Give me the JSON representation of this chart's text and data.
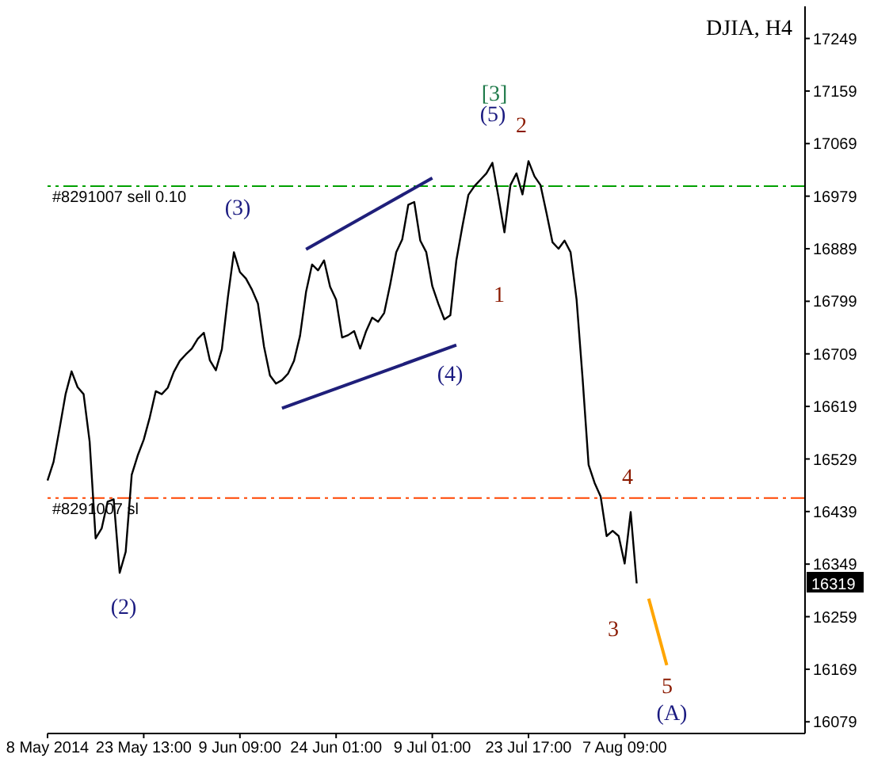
{
  "chart_data": {
    "type": "line",
    "title": "DJIA, H4",
    "categories": [
      "8 May 2014",
      null,
      null,
      null,
      null,
      null,
      null,
      null,
      null,
      null,
      null,
      null,
      null,
      null,
      null,
      null,
      "23 May 13:00",
      null,
      null,
      null,
      null,
      null,
      null,
      null,
      null,
      null,
      null,
      null,
      null,
      null,
      null,
      null,
      "9 Jun 09:00",
      null,
      null,
      null,
      null,
      null,
      null,
      null,
      null,
      null,
      null,
      null,
      null,
      null,
      null,
      null,
      "24 Jun 01:00",
      null,
      null,
      null,
      null,
      null,
      null,
      null,
      null,
      null,
      null,
      null,
      null,
      null,
      null,
      null,
      "9 Jul 01:00",
      null,
      null,
      null,
      null,
      null,
      null,
      null,
      null,
      null,
      null,
      null,
      null,
      null,
      null,
      null,
      "23 Jul 17:00",
      null,
      null,
      null,
      null,
      null,
      null,
      null,
      null,
      null,
      null,
      null,
      null,
      null,
      null,
      null,
      "7 Aug 09:00",
      null,
      null,
      null,
      null,
      null,
      null,
      null,
      null,
      null,
      null,
      null,
      null,
      null,
      null,
      null,
      null,
      null,
      null,
      null,
      null,
      null,
      null,
      null,
      null,
      null,
      null,
      null,
      null,
      null,
      null
    ],
    "ylim": [
      16059,
      17304
    ],
    "yticks": [
      16079,
      16169,
      16259,
      16349,
      16439,
      16529,
      16619,
      16709,
      16799,
      16889,
      16979,
      17069,
      17159,
      17249
    ],
    "marker": "none",
    "line_style": "solid",
    "series": [
      {
        "color": "#000000",
        "values": [
          16492,
          16524,
          16581,
          16640,
          16679,
          16652,
          16640,
          16559,
          16393,
          16410,
          16456,
          16460,
          16334,
          16370,
          16502,
          16535,
          16562,
          16600,
          16645,
          16640,
          16651,
          16678,
          16697,
          16708,
          16718,
          16735,
          16745,
          16698,
          16681,
          16717,
          16806,
          16883,
          16849,
          16838,
          16819,
          16795,
          16722,
          16672,
          16658,
          16664,
          16675,
          16697,
          16740,
          16815,
          16862,
          16852,
          16869,
          16824,
          16802,
          16737,
          16741,
          16748,
          16718,
          16748,
          16771,
          16764,
          16779,
          16828,
          16883,
          16905,
          16964,
          16969,
          16903,
          16883,
          16825,
          16795,
          16768,
          16775,
          16869,
          16927,
          16981,
          16996,
          17007,
          17018,
          17036,
          16978,
          16917,
          16998,
          17018,
          16982,
          17039,
          17013,
          16998,
          16950,
          16900,
          16889,
          16903,
          16883,
          16802,
          16667,
          16519,
          16488,
          16465,
          16397,
          16406,
          16397,
          16350,
          16438,
          16316,
          null,
          null,
          null,
          null,
          null,
          null,
          null,
          null,
          null,
          null,
          null,
          null,
          null,
          null,
          null,
          null,
          null,
          null,
          null,
          null,
          null,
          null,
          null,
          null,
          null,
          null,
          null,
          null
        ]
      },
      {
        "color": "#1f1f7a",
        "values": [
          null,
          null,
          null,
          null,
          null,
          null,
          null,
          null,
          null,
          null,
          null,
          null,
          null,
          null,
          null,
          null,
          null,
          null,
          null,
          null,
          null,
          null,
          null,
          null,
          null,
          null,
          null,
          null,
          null,
          null,
          null,
          null,
          null,
          null,
          null,
          null,
          null,
          null,
          null,
          null,
          null,
          null,
          null,
          16888,
          null,
          null,
          null,
          null,
          null,
          null,
          null,
          null,
          null,
          null,
          null,
          null,
          null,
          null,
          null,
          null,
          null,
          null,
          null,
          null,
          17010,
          null,
          null,
          null,
          null,
          null,
          null,
          null,
          null,
          null,
          null,
          null,
          null,
          null,
          null,
          null,
          null,
          null,
          null,
          null,
          null,
          null,
          null,
          null,
          null,
          null,
          null,
          null,
          null,
          null,
          null,
          null,
          null,
          null,
          null,
          null,
          null,
          null,
          null,
          null,
          null,
          null,
          null,
          null,
          null,
          null,
          null,
          null,
          null,
          null,
          null,
          null,
          null,
          null,
          null,
          null,
          null,
          null,
          null,
          null,
          null,
          null,
          null
        ]
      },
      {
        "color": "#1f1f7a",
        "values": [
          null,
          null,
          null,
          null,
          null,
          null,
          null,
          null,
          null,
          null,
          null,
          null,
          null,
          null,
          null,
          null,
          null,
          null,
          null,
          null,
          null,
          null,
          null,
          null,
          null,
          null,
          null,
          null,
          null,
          null,
          null,
          null,
          null,
          null,
          null,
          null,
          null,
          null,
          null,
          16616,
          null,
          null,
          null,
          null,
          null,
          null,
          null,
          null,
          null,
          null,
          null,
          null,
          null,
          null,
          null,
          null,
          null,
          null,
          null,
          null,
          null,
          null,
          null,
          null,
          null,
          null,
          null,
          null,
          16724,
          null,
          null,
          null,
          null,
          null,
          null,
          null,
          null,
          null,
          null,
          null,
          null,
          null,
          null,
          null,
          null,
          null,
          null,
          null,
          null,
          null,
          null,
          null,
          null,
          null,
          null,
          null,
          null,
          null,
          null,
          null,
          null,
          null,
          null,
          null,
          null,
          null,
          null,
          null,
          null,
          null,
          null,
          null,
          null,
          null,
          null,
          null,
          null,
          null,
          null,
          null,
          null,
          null,
          null,
          null,
          null,
          null,
          null
        ]
      },
      {
        "color": "#ffa500",
        "values": [
          null,
          null,
          null,
          null,
          null,
          null,
          null,
          null,
          null,
          null,
          null,
          null,
          null,
          null,
          null,
          null,
          null,
          null,
          null,
          null,
          null,
          null,
          null,
          null,
          null,
          null,
          null,
          null,
          null,
          null,
          null,
          null,
          null,
          null,
          null,
          null,
          null,
          null,
          null,
          null,
          null,
          null,
          null,
          null,
          null,
          null,
          null,
          null,
          null,
          null,
          null,
          null,
          null,
          null,
          null,
          null,
          null,
          null,
          null,
          null,
          null,
          null,
          null,
          null,
          null,
          null,
          null,
          null,
          null,
          null,
          null,
          null,
          null,
          null,
          null,
          null,
          null,
          null,
          null,
          null,
          null,
          null,
          null,
          null,
          null,
          null,
          null,
          null,
          null,
          null,
          null,
          null,
          null,
          null,
          null,
          null,
          null,
          null,
          null,
          null,
          16290,
          null,
          null,
          16176,
          null,
          null,
          null,
          null,
          null,
          null,
          null,
          null,
          null,
          null,
          null,
          null,
          null,
          null,
          null,
          null,
          null,
          null,
          null,
          null,
          null,
          null,
          null
        ]
      }
    ],
    "ref_lines": [
      {
        "axis": "y",
        "value": 16996,
        "label": "#8291007 sell 0.10",
        "color": "#00a000",
        "line_style": "dashed"
      },
      {
        "axis": "y",
        "value": 16462,
        "label": "#8291007 sl",
        "color": "#ff4500",
        "line_style": "dashed"
      }
    ],
    "annotations": [
      "(2)",
      "(3)",
      "(4)",
      "(5)",
      "[3]",
      "1",
      "2",
      "3",
      "4",
      "5",
      "(A)",
      "16319"
    ]
  }
}
